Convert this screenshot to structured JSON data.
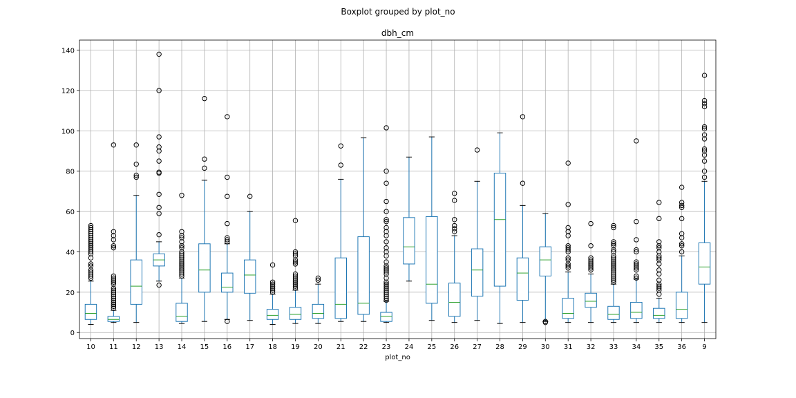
{
  "chart_data": {
    "type": "boxplot",
    "suptitle": "Boxplot grouped by plot_no",
    "title": "dbh_cm",
    "xlabel": "plot_no",
    "ylabel": "",
    "ylim": [
      -3,
      145
    ],
    "yticks": [
      0,
      20,
      40,
      60,
      80,
      100,
      120,
      140
    ],
    "grid": true,
    "colors": {
      "box": "#1f77b4",
      "median": "#2ca02c",
      "whisker": "#1f77b4",
      "grid": "#b0b0b0",
      "flier": "#000000"
    },
    "categories": [
      "10",
      "11",
      "12",
      "13",
      "14",
      "15",
      "16",
      "17",
      "18",
      "19",
      "20",
      "21",
      "22",
      "23",
      "24",
      "25",
      "26",
      "27",
      "28",
      "29",
      "30",
      "31",
      "32",
      "33",
      "34",
      "35",
      "36",
      "9"
    ],
    "boxes": [
      {
        "whislo": 4,
        "q1": 6.5,
        "med": 9.5,
        "q3": 14,
        "whishi": 25.5,
        "fliers": [
          27,
          28,
          29,
          30,
          31,
          33,
          34,
          37,
          39,
          40,
          41,
          42,
          43,
          44,
          45,
          46,
          47,
          48,
          49,
          50,
          51,
          52,
          53
        ]
      },
      {
        "whislo": 5,
        "q1": 5.5,
        "med": 6.5,
        "q3": 8,
        "whishi": 11,
        "fliers": [
          12,
          13,
          14,
          15,
          16,
          17,
          18,
          19,
          20,
          21,
          22,
          24,
          25,
          26,
          27,
          28,
          42,
          43,
          46,
          48,
          50,
          93
        ]
      },
      {
        "whislo": 5,
        "q1": 14,
        "med": 23,
        "q3": 36,
        "whishi": 68,
        "fliers": [
          77,
          78,
          83.5,
          93
        ]
      },
      {
        "whislo": 25.5,
        "q1": 33,
        "med": 36,
        "q3": 39,
        "whishi": 45,
        "fliers": [
          23.5,
          48.5,
          59,
          62,
          68.5,
          79,
          79.5,
          85,
          90,
          92,
          97,
          120,
          138
        ]
      },
      {
        "whislo": 4.5,
        "q1": 5.5,
        "med": 8,
        "q3": 14.5,
        "whishi": 27,
        "fliers": [
          28,
          29,
          30,
          31,
          32,
          33,
          34,
          35,
          36,
          37,
          38,
          39,
          40,
          42,
          43,
          45,
          47,
          48,
          50,
          68
        ]
      },
      {
        "whislo": 5.5,
        "q1": 20,
        "med": 31,
        "q3": 44,
        "whishi": 75.5,
        "fliers": [
          81.5,
          86,
          116
        ]
      },
      {
        "whislo": 6.5,
        "q1": 20,
        "med": 22.5,
        "q3": 29.5,
        "whishi": 44,
        "fliers": [
          5.5,
          45,
          46,
          47,
          54,
          67.5,
          77,
          107
        ]
      },
      {
        "whislo": 6,
        "q1": 19.5,
        "med": 28.5,
        "q3": 36,
        "whishi": 60,
        "fliers": [
          67.5
        ]
      },
      {
        "whislo": 4,
        "q1": 6.5,
        "med": 8.5,
        "q3": 11.5,
        "whishi": 19,
        "fliers": [
          20,
          21,
          22,
          23,
          24,
          25,
          33.5
        ]
      },
      {
        "whislo": 4.5,
        "q1": 6.5,
        "med": 9,
        "q3": 12.5,
        "whishi": 21,
        "fliers": [
          22,
          23,
          24,
          25,
          26,
          27,
          28,
          29,
          34,
          35,
          36,
          38,
          39,
          40,
          55.5
        ]
      },
      {
        "whislo": 4.5,
        "q1": 7,
        "med": 9.5,
        "q3": 14,
        "whishi": 24,
        "fliers": [
          26,
          27
        ]
      },
      {
        "whislo": 5.5,
        "q1": 7,
        "med": 14,
        "q3": 37,
        "whishi": 76,
        "fliers": [
          83,
          92.5
        ]
      },
      {
        "whislo": 5.5,
        "q1": 9,
        "med": 14.5,
        "q3": 47.5,
        "whishi": 96.5,
        "fliers": []
      },
      {
        "whislo": 5,
        "q1": 5.5,
        "med": 8,
        "q3": 10,
        "whishi": 15.5,
        "fliers": [
          16,
          17,
          18,
          19,
          20,
          21,
          22,
          23,
          24,
          25,
          27,
          29,
          30,
          31,
          32,
          33,
          35,
          38,
          40,
          42,
          45,
          48,
          50,
          52,
          55,
          56,
          60,
          65,
          74,
          80,
          101.5
        ]
      },
      {
        "whislo": 25.5,
        "q1": 34,
        "med": 42.5,
        "q3": 57,
        "whishi": 87,
        "fliers": []
      },
      {
        "whislo": 6,
        "q1": 14.5,
        "med": 24,
        "q3": 57.5,
        "whishi": 97,
        "fliers": []
      },
      {
        "whislo": 5,
        "q1": 8,
        "med": 15,
        "q3": 24.5,
        "whishi": 48,
        "fliers": [
          50,
          51.5,
          53,
          56,
          65.5,
          69
        ]
      },
      {
        "whislo": 6,
        "q1": 18,
        "med": 31,
        "q3": 41.5,
        "whishi": 75,
        "fliers": [
          90.5
        ]
      },
      {
        "whislo": 4.5,
        "q1": 23,
        "med": 56,
        "q3": 79,
        "whishi": 99,
        "fliers": []
      },
      {
        "whislo": 5,
        "q1": 16,
        "med": 29.5,
        "q3": 37,
        "whishi": 63,
        "fliers": [
          74,
          107
        ]
      },
      {
        "whislo": 5.5,
        "q1": 28,
        "med": 36,
        "q3": 42.5,
        "whishi": 59,
        "fliers": [
          5,
          5.5
        ]
      },
      {
        "whislo": 5,
        "q1": 7,
        "med": 9.5,
        "q3": 17,
        "whishi": 30,
        "fliers": [
          32,
          33,
          34,
          36,
          37,
          40,
          41,
          42,
          43,
          48,
          50,
          52,
          63.5,
          84
        ]
      },
      {
        "whislo": 5,
        "q1": 12.5,
        "med": 15.5,
        "q3": 19.5,
        "whishi": 29,
        "fliers": [
          31,
          32,
          33,
          34,
          35,
          36,
          37,
          43,
          54
        ]
      },
      {
        "whislo": 5,
        "q1": 6.5,
        "med": 9,
        "q3": 13,
        "whishi": 24,
        "fliers": [
          25,
          26,
          27,
          28,
          29,
          30,
          31,
          32,
          33,
          34,
          35,
          36,
          37,
          38,
          40,
          41,
          43,
          44,
          45,
          52,
          53
        ]
      },
      {
        "whislo": 5,
        "q1": 7,
        "med": 10,
        "q3": 15,
        "whishi": 26.5,
        "fliers": [
          27,
          28,
          31,
          32,
          33,
          34,
          35,
          40,
          41,
          46,
          55,
          95
        ]
      },
      {
        "whislo": 5,
        "q1": 7,
        "med": 8.5,
        "q3": 12,
        "whishi": 17,
        "fliers": [
          19,
          21,
          22,
          23,
          24,
          26,
          29,
          31,
          34,
          36,
          37,
          38,
          40,
          42,
          43,
          45,
          56.5,
          64.5
        ]
      },
      {
        "whislo": 5,
        "q1": 7,
        "med": 11.5,
        "q3": 20,
        "whishi": 38,
        "fliers": [
          40,
          43,
          44,
          47,
          49,
          56.5,
          62,
          63,
          64.5,
          72
        ]
      },
      {
        "whislo": 5,
        "q1": 24,
        "med": 32.5,
        "q3": 44.5,
        "whishi": 75,
        "fliers": [
          77,
          80,
          85,
          88,
          90,
          91,
          96,
          98,
          101,
          102,
          112,
          113.5,
          115,
          127.5
        ]
      }
    ]
  }
}
